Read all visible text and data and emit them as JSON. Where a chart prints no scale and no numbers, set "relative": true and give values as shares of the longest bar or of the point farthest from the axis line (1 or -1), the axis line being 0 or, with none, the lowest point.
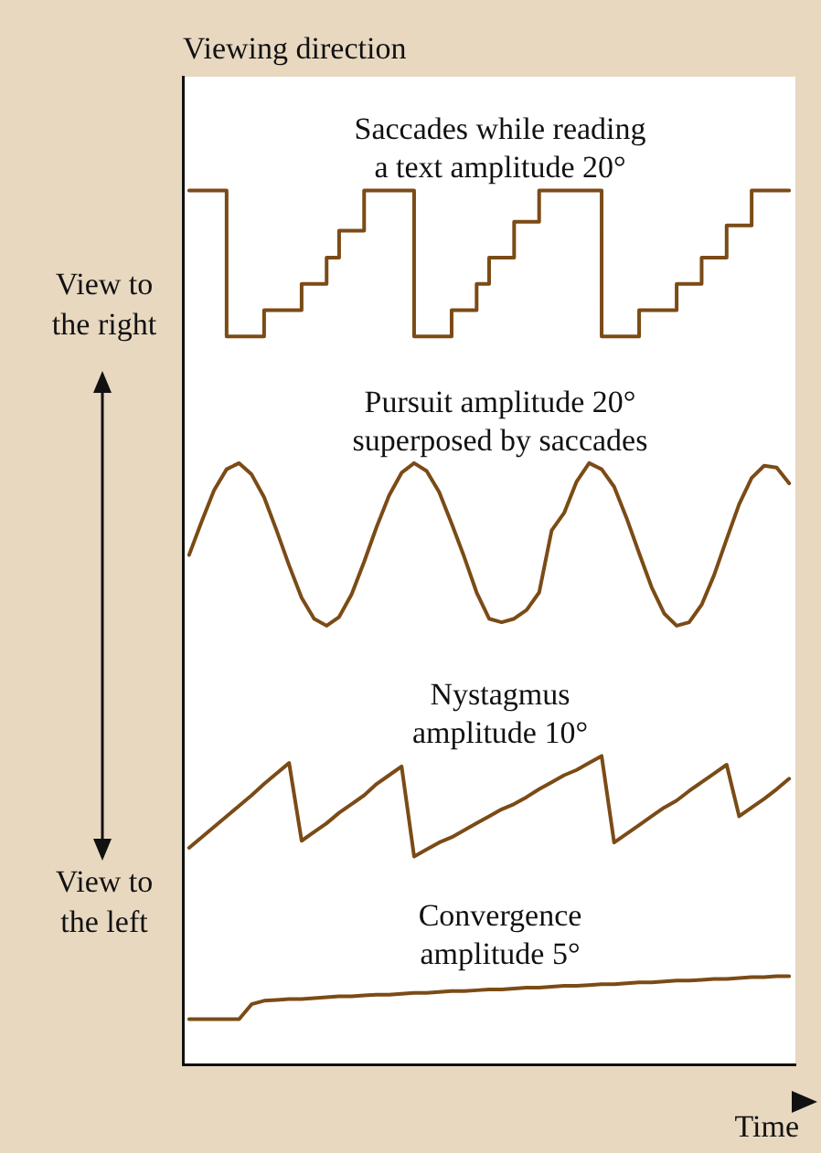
{
  "chart_data": {
    "type": "line",
    "relative": true,
    "ylabel": "Viewing direction",
    "xlabel": "Time",
    "legend": false,
    "grid": false,
    "marker": "none",
    "line_style": "solid",
    "annotations": [
      "View to the right",
      "View to the left"
    ],
    "categories": [
      null,
      null,
      null,
      null,
      null,
      null,
      null,
      null,
      null,
      null,
      null,
      null,
      null,
      null,
      null,
      null,
      null,
      null,
      null,
      null,
      null,
      null,
      null,
      null,
      null,
      null,
      null,
      null,
      null,
      null,
      null,
      null,
      null,
      null,
      null,
      null,
      null,
      null,
      null,
      null,
      null,
      null,
      null,
      null,
      null,
      null,
      null,
      null,
      null
    ],
    "series": [
      {
        "name": "Saccades while reading\na text amplitude 20°",
        "type": "step",
        "color": "#7b4b16",
        "values": [
          1.0,
          1.0,
          1.0,
          1.0,
          0.833,
          0.833,
          0.833,
          0.863,
          0.863,
          0.863,
          0.893,
          0.893,
          0.923,
          0.954,
          0.954,
          1.0,
          1.0,
          1.0,
          1.0,
          0.833,
          0.833,
          0.833,
          0.863,
          0.863,
          0.893,
          0.923,
          0.923,
          0.964,
          0.964,
          1.0,
          1.0,
          1.0,
          1.0,
          1.0,
          0.833,
          0.833,
          0.833,
          0.863,
          0.863,
          0.863,
          0.893,
          0.893,
          0.923,
          0.923,
          0.96,
          0.96,
          1.0,
          1.0,
          1.0
        ]
      },
      {
        "name": "Pursuit amplitude 20°\nsuperposed by saccades",
        "color": "#7b4b16",
        "values": [
          0.583,
          0.621,
          0.657,
          0.681,
          0.688,
          0.675,
          0.649,
          0.611,
          0.571,
          0.534,
          0.51,
          0.502,
          0.512,
          0.538,
          0.575,
          0.615,
          0.651,
          0.677,
          0.688,
          0.679,
          0.655,
          0.619,
          0.581,
          0.54,
          0.51,
          0.506,
          0.51,
          0.52,
          0.54,
          0.611,
          0.631,
          0.667,
          0.688,
          0.681,
          0.661,
          0.625,
          0.585,
          0.546,
          0.516,
          0.502,
          0.506,
          0.526,
          0.56,
          0.601,
          0.641,
          0.671,
          0.685,
          0.683,
          0.665
        ]
      },
      {
        "name": "Nystagmus\namplitude 10°",
        "color": "#7b4b16",
        "values": [
          0.248,
          0.26,
          0.272,
          0.284,
          0.296,
          0.308,
          0.321,
          0.333,
          0.345,
          0.256,
          0.266,
          0.276,
          0.288,
          0.298,
          0.308,
          0.321,
          0.331,
          0.341,
          0.238,
          0.246,
          0.254,
          0.26,
          0.268,
          0.276,
          0.284,
          0.292,
          0.298,
          0.306,
          0.315,
          0.323,
          0.331,
          0.337,
          0.345,
          0.353,
          0.254,
          0.264,
          0.274,
          0.284,
          0.294,
          0.302,
          0.313,
          0.323,
          0.333,
          0.343,
          0.284,
          0.294,
          0.304,
          0.315,
          0.327
        ]
      },
      {
        "name": "Convergence\namplitude 5°",
        "color": "#7b4b16",
        "values": [
          0.052,
          0.052,
          0.052,
          0.052,
          0.052,
          0.069,
          0.073,
          0.074,
          0.075,
          0.075,
          0.076,
          0.077,
          0.078,
          0.078,
          0.079,
          0.08,
          0.08,
          0.081,
          0.082,
          0.082,
          0.083,
          0.084,
          0.084,
          0.085,
          0.086,
          0.086,
          0.087,
          0.088,
          0.088,
          0.089,
          0.09,
          0.09,
          0.091,
          0.092,
          0.092,
          0.093,
          0.094,
          0.094,
          0.095,
          0.096,
          0.096,
          0.097,
          0.098,
          0.098,
          0.099,
          0.1,
          0.1,
          0.101,
          0.101
        ]
      }
    ]
  }
}
